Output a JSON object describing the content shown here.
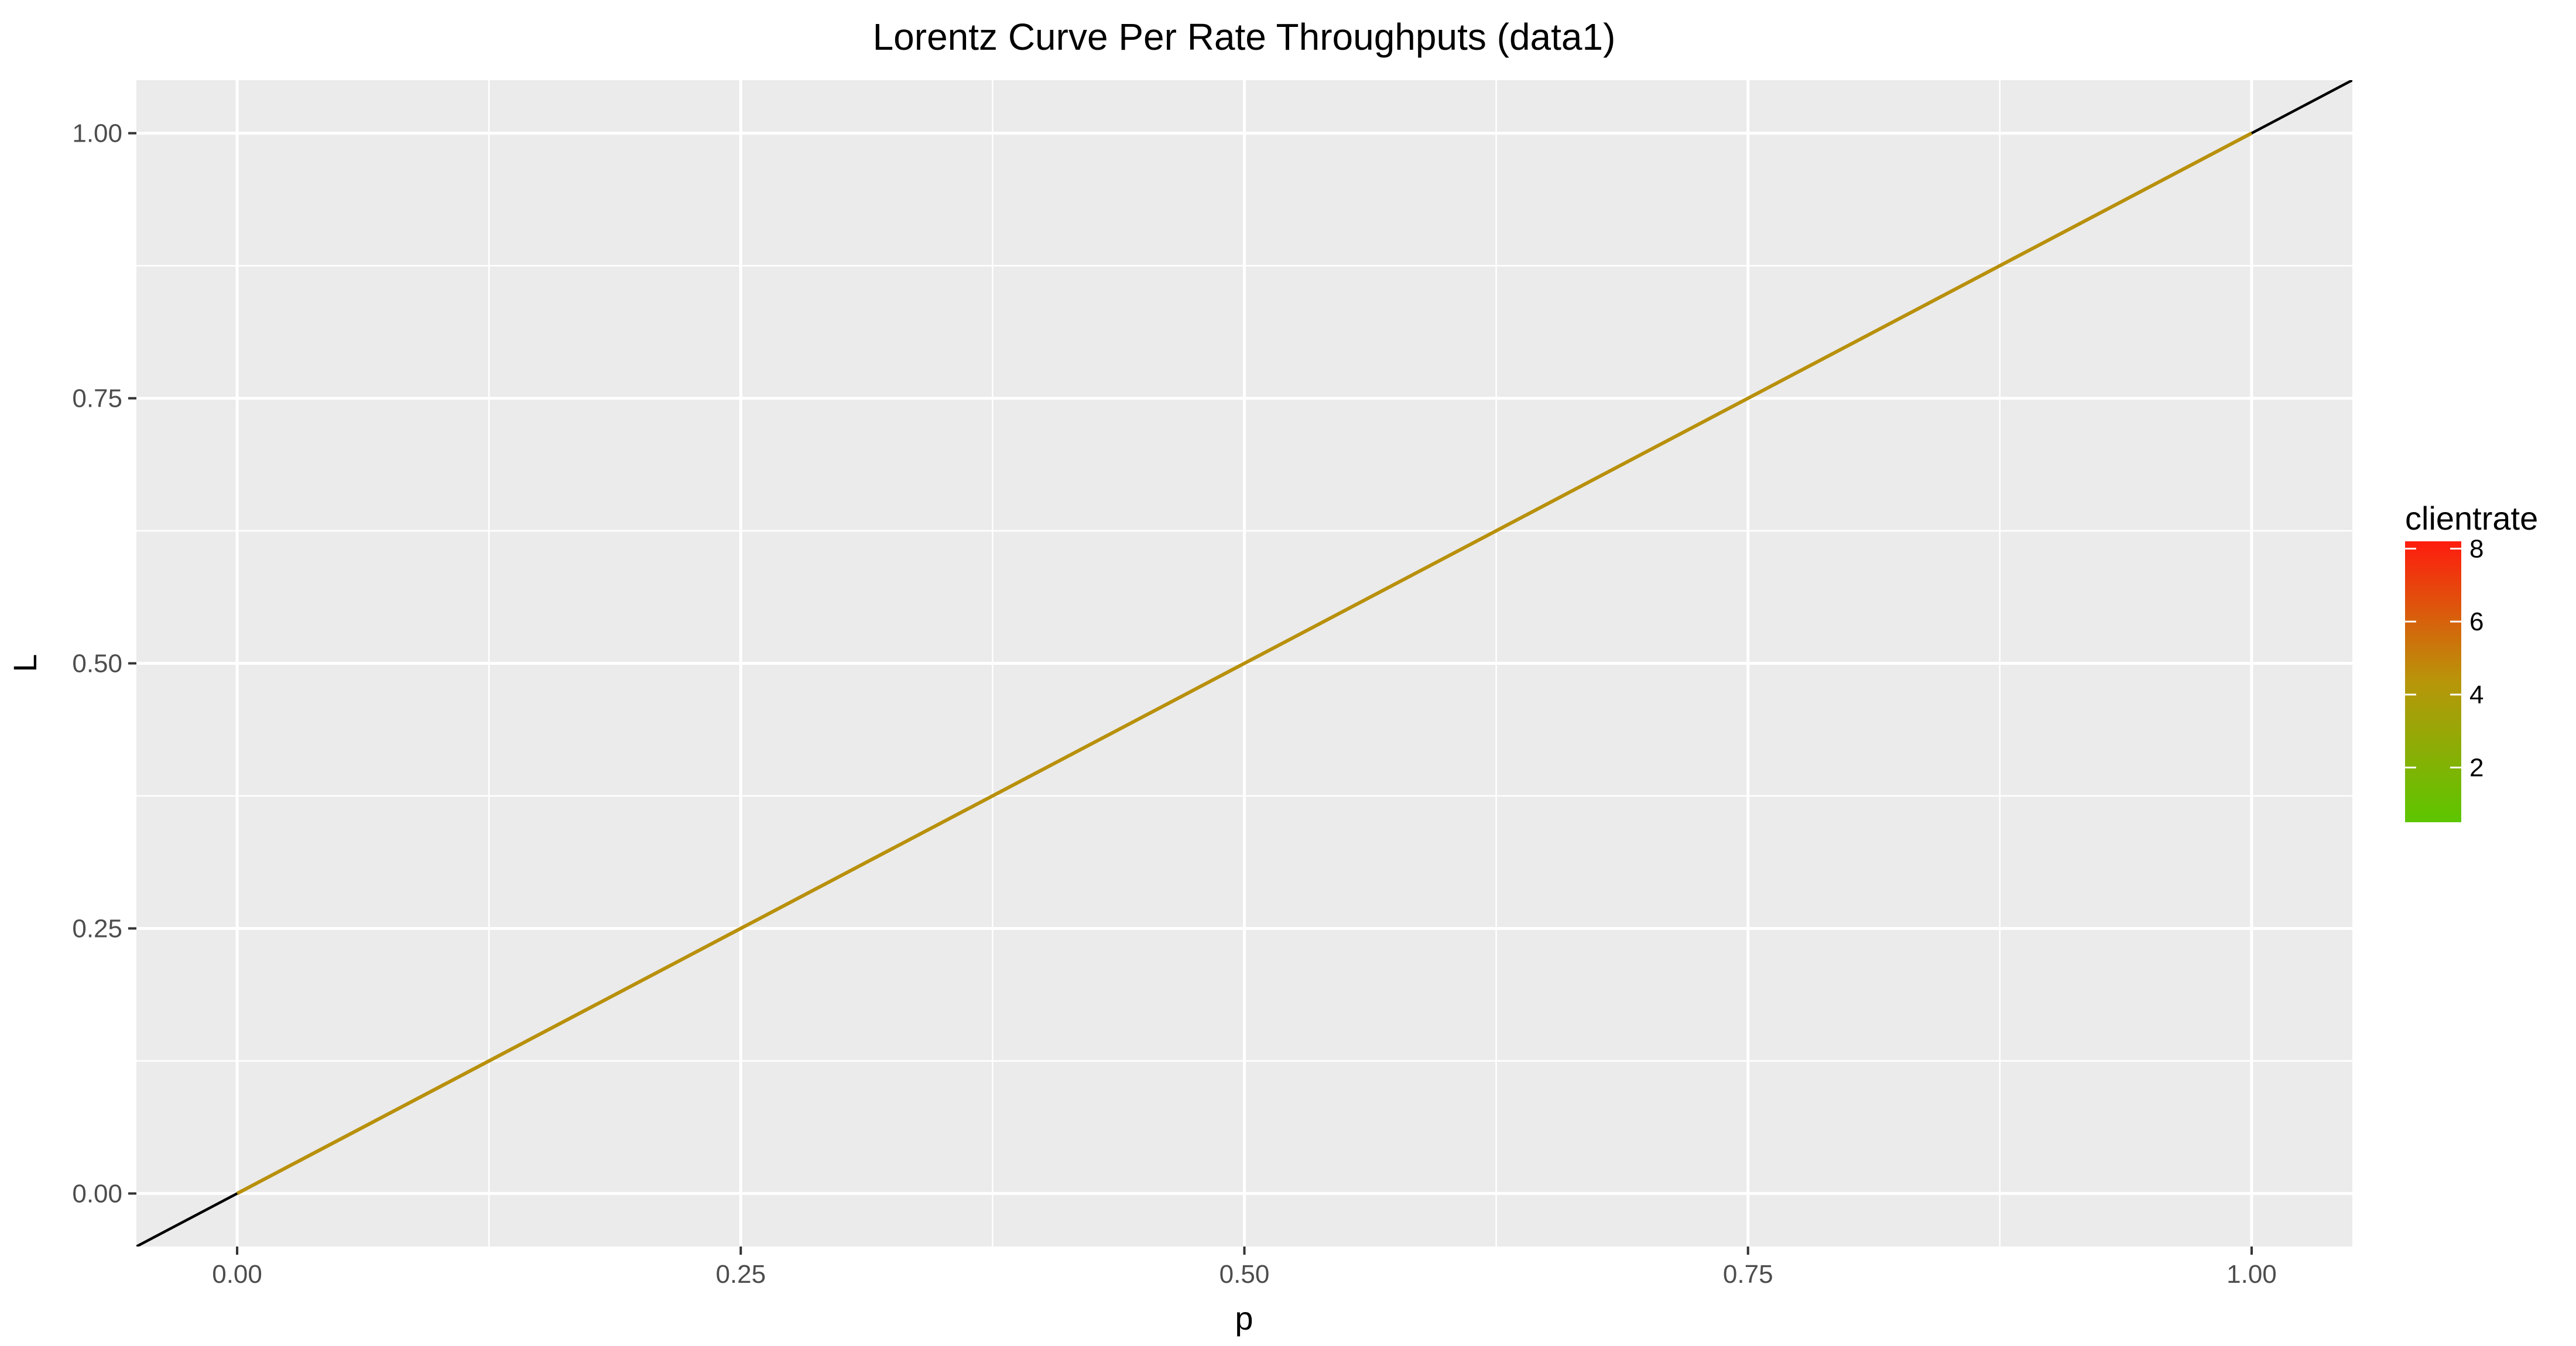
{
  "chart_data": {
    "type": "line",
    "title": "Lorentz Curve Per Rate Throughputs (data1)",
    "xlabel": "p",
    "ylabel": "L",
    "xlim": [
      -0.05,
      1.05
    ],
    "ylim": [
      -0.05,
      1.05
    ],
    "x_ticks": [
      0.0,
      0.25,
      0.5,
      0.75,
      1.0
    ],
    "x_tick_labels": [
      "0.00",
      "0.25",
      "0.50",
      "0.75",
      "1.00"
    ],
    "y_ticks": [
      0.0,
      0.25,
      0.5,
      0.75,
      1.0
    ],
    "y_tick_labels": [
      "0.00",
      "0.25",
      "0.50",
      "0.75",
      "1.00"
    ],
    "grid": true,
    "background_color": "#ebebeb",
    "grid_color": "#ffffff",
    "reference_line": {
      "color": "#000000",
      "x": [
        -0.05,
        1.05
      ],
      "y": [
        -0.05,
        1.05
      ]
    },
    "series": [
      {
        "color": "#b8900b",
        "x": [
          0.0,
          1.0
        ],
        "y": [
          0.0,
          1.0
        ]
      }
    ],
    "legend": {
      "title": "clientrate",
      "placement": "right",
      "range": [
        0.5,
        8.2
      ],
      "ticks": [
        2,
        4,
        6,
        8
      ],
      "tick_labels": [
        "2",
        "4",
        "6",
        "8"
      ],
      "color_low": "#5cc600",
      "color_mid": "#b8960a",
      "color_high": "#ff1c0e"
    }
  }
}
